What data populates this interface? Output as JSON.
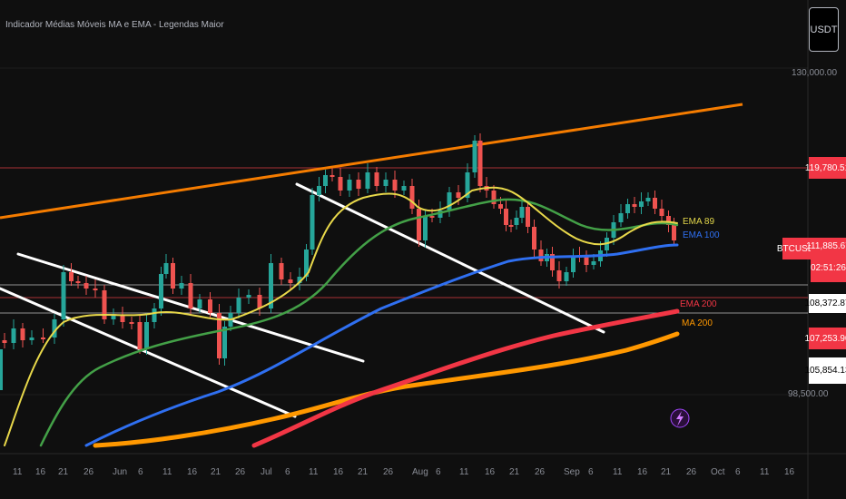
{
  "header": {
    "title": "Indicador Médias Móveis MA e EMA - Legendas Maior",
    "currency_button": "USDT"
  },
  "price_axis": {
    "top_tick": "130,000.00",
    "bottom_tick": "98,500.00",
    "tags": [
      {
        "id": "resistance",
        "text": "119,780.51",
        "bg": "#f23645",
        "fg": "#ffffff"
      },
      {
        "id": "symbol",
        "text": "BTCUSDT",
        "bg": "#f23645",
        "fg": "#ffffff"
      },
      {
        "id": "last-price",
        "text": "111,885.67",
        "bg": "#f23645",
        "fg": "#ffffff"
      },
      {
        "id": "countdown",
        "text": "02:51:26",
        "bg": "#f23645",
        "fg": "#ffffff"
      },
      {
        "id": "level-white-1",
        "text": "108,372.87",
        "bg": "#ffffff",
        "fg": "#000000"
      },
      {
        "id": "ema-200-value",
        "text": "107,253.90",
        "bg": "#f23645",
        "fg": "#ffffff"
      },
      {
        "id": "level-white-2",
        "text": "105,854.13",
        "bg": "#ffffff",
        "fg": "#000000"
      }
    ]
  },
  "ma_labels": [
    {
      "id": "ema-89",
      "text": "EMA 89",
      "color": "#e2d64a"
    },
    {
      "id": "ema-100",
      "text": "EMA 100",
      "color": "#2f6ff0"
    },
    {
      "id": "ema-200",
      "text": "EMA 200",
      "color": "#f23645"
    },
    {
      "id": "ma-200",
      "text": "MA 200",
      "color": "#ff9800"
    }
  ],
  "time_axis": [
    "11",
    "16",
    "21",
    "26",
    "Jun",
    "6",
    "11",
    "16",
    "21",
    "26",
    "Jul",
    "6",
    "11",
    "16",
    "21",
    "26",
    "Aug",
    "6",
    "11",
    "16",
    "21",
    "26",
    "Sep",
    "6",
    "11",
    "16",
    "21",
    "26",
    "Oct",
    "6",
    "11",
    "16"
  ],
  "colors": {
    "background": "#0f0f0f",
    "candle_up": "#26a69a",
    "candle_down": "#ef5350",
    "trendline_orange": "#f57c00",
    "trendline_white": "#ffffff",
    "ema_yellow": "#e8d84a",
    "ema_green": "#43a047",
    "ema_blue": "#2f6ff0",
    "ema_red": "#f23645",
    "ma_orange": "#ff9800"
  },
  "icons": {
    "flash": "lightning-icon"
  },
  "chart_data": {
    "type": "line",
    "series": [
      {
        "name": "EMA 89",
        "values": [
          [
            "2025-05-09",
            98500
          ],
          [
            "2025-05-16",
            101700
          ],
          [
            "2025-05-23",
            103200
          ],
          [
            "2025-05-30",
            104800
          ],
          [
            "2025-06-06",
            104900
          ],
          [
            "2025-06-13",
            105300
          ],
          [
            "2025-06-20",
            105000
          ],
          [
            "2025-06-27",
            105900
          ],
          [
            "2025-07-04",
            106700
          ],
          [
            "2025-07-11",
            111100
          ],
          [
            "2025-07-18",
            114600
          ],
          [
            "2025-07-25",
            115800
          ],
          [
            "2025-08-01",
            115800
          ],
          [
            "2025-08-08",
            114100
          ],
          [
            "2025-08-15",
            115800
          ],
          [
            "2025-08-22",
            116800
          ],
          [
            "2025-08-29",
            115300
          ],
          [
            "2025-09-05",
            113400
          ],
          [
            "2025-09-12",
            112800
          ],
          [
            "2025-09-19",
            114200
          ],
          [
            "2025-09-23",
            113600
          ]
        ]
      },
      {
        "name": "EMA 100",
        "values": [
          [
            "2025-05-09",
            90000
          ],
          [
            "2025-05-30",
            95000
          ],
          [
            "2025-06-20",
            98500
          ],
          [
            "2025-07-11",
            101200
          ],
          [
            "2025-07-25",
            103800
          ],
          [
            "2025-08-08",
            106800
          ],
          [
            "2025-08-22",
            110000
          ],
          [
            "2025-09-05",
            111400
          ],
          [
            "2025-09-19",
            112000
          ],
          [
            "2025-09-23",
            112300
          ]
        ]
      },
      {
        "name": "EMA 200",
        "values": [
          [
            "2025-06-25",
            87000
          ],
          [
            "2025-07-11",
            91200
          ],
          [
            "2025-07-25",
            94800
          ],
          [
            "2025-08-08",
            98300
          ],
          [
            "2025-08-22",
            101500
          ],
          [
            "2025-09-05",
            104300
          ],
          [
            "2025-09-19",
            106300
          ],
          [
            "2025-09-23",
            107250
          ]
        ]
      },
      {
        "name": "MA 200",
        "values": [
          [
            "2025-05-09",
            87000
          ],
          [
            "2025-05-30",
            87800
          ],
          [
            "2025-06-20",
            89800
          ],
          [
            "2025-07-11",
            93900
          ],
          [
            "2025-07-25",
            96700
          ],
          [
            "2025-08-08",
            98800
          ],
          [
            "2025-08-22",
            100000
          ],
          [
            "2025-09-05",
            101800
          ],
          [
            "2025-09-19",
            104500
          ],
          [
            "2025-09-23",
            105850
          ]
        ]
      }
    ],
    "ylim": [
      86000,
      131000
    ]
  }
}
